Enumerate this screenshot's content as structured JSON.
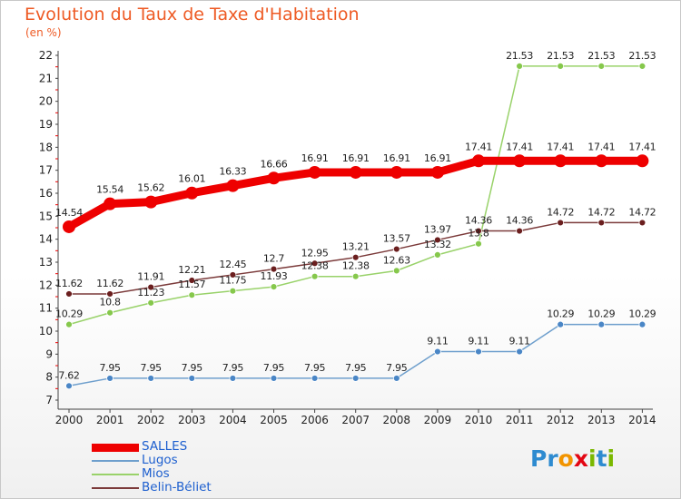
{
  "title": "Evolution du Taux de Taxe d'Habitation",
  "subtitle": "(en %)",
  "logo": {
    "text": "Proxiti",
    "letters": [
      {
        "ch": "P",
        "color": "#2e8bd0"
      },
      {
        "ch": "r",
        "color": "#2e8bd0"
      },
      {
        "ch": "o",
        "color": "#f29400"
      },
      {
        "ch": "x",
        "color": "#e30613"
      },
      {
        "ch": "i",
        "color": "#7ab800"
      },
      {
        "ch": "t",
        "color": "#2e8bd0"
      },
      {
        "ch": "i",
        "color": "#7ab800"
      }
    ]
  },
  "chart_data": {
    "type": "line",
    "title": "Evolution du Taux de Taxe d'Habitation",
    "ylabel": "(en %)",
    "xlabel": "",
    "x": [
      "2000",
      "2001",
      "2002",
      "2003",
      "2004",
      "2005",
      "2006",
      "2007",
      "2008",
      "2009",
      "2010",
      "2011",
      "2012",
      "2013",
      "2014"
    ],
    "ylim": [
      7,
      22
    ],
    "yticks": [
      7,
      8,
      9,
      10,
      11,
      12,
      13,
      14,
      15,
      16,
      17,
      18,
      19,
      20,
      21,
      22
    ],
    "grid": false,
    "legend_position": "bottom-left",
    "series": [
      {
        "name": "SALLES",
        "color": "#ee0000",
        "values": [
          14.54,
          15.54,
          15.62,
          16.01,
          16.33,
          16.66,
          16.91,
          16.91,
          16.91,
          16.91,
          17.41,
          17.41,
          17.41,
          17.41,
          17.41
        ],
        "labels": [
          "14.54",
          "15.54",
          "15.62",
          "16.01",
          "16.33",
          "16.66",
          "16.91",
          "16.91",
          "16.91",
          "16.91",
          "17.41",
          "17.41",
          "17.41",
          "17.41",
          "17.41"
        ]
      },
      {
        "name": "Lugos",
        "color": "#6e9fcd",
        "point_color": "#4a86c6",
        "values": [
          7.62,
          7.95,
          7.95,
          7.95,
          7.95,
          7.95,
          7.95,
          7.95,
          7.95,
          9.11,
          9.11,
          9.11,
          10.29,
          10.29,
          10.29
        ],
        "labels": [
          "7.62",
          "7.95",
          "7.95",
          "7.95",
          "7.95",
          "7.95",
          "7.95",
          "7.95",
          "7.95",
          "9.11",
          "9.11",
          "9.11",
          "10.29",
          "10.29",
          "10.29"
        ]
      },
      {
        "name": "Mios",
        "color": "#99d26a",
        "point_color": "#86c84c",
        "values": [
          10.29,
          10.8,
          11.23,
          11.57,
          11.75,
          11.93,
          12.38,
          12.38,
          12.63,
          13.32,
          13.8,
          21.53,
          21.53,
          21.53,
          21.53
        ],
        "labels": [
          "10.29",
          "10.8",
          "11.23",
          "11.57",
          "11.75",
          "11.93",
          "12.38",
          "12.38",
          "12.63",
          "13.32",
          "13.8",
          "21.53",
          "21.53",
          "21.53",
          "21.53"
        ]
      },
      {
        "name": "Belin-Béliet",
        "color": "#7b3a3a",
        "point_color": "#6b1f1f",
        "values": [
          11.62,
          11.62,
          11.91,
          12.21,
          12.45,
          12.7,
          12.95,
          13.21,
          13.57,
          13.97,
          14.36,
          14.36,
          14.72,
          14.72,
          14.72
        ],
        "labels": [
          "11.62",
          "11.62",
          "11.91",
          "12.21",
          "12.45",
          "12.7",
          "12.95",
          "13.21",
          "13.57",
          "13.97",
          "14.36",
          "14.36",
          "14.72",
          "14.72",
          "14.72"
        ]
      }
    ]
  }
}
